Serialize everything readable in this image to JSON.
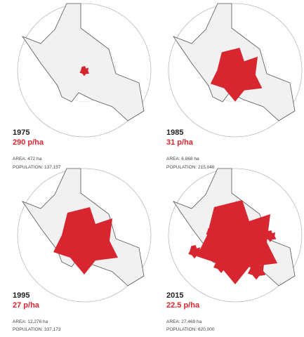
{
  "panels": [
    {
      "year": "1975",
      "density": "290 p/ha",
      "area": "AREA: 472 ha",
      "population": "POPULATION: 137,157"
    },
    {
      "year": "1985",
      "density": "31 p/ha",
      "area": "AREA: 6,868 ha",
      "population": "POPULATION: 215,048"
    },
    {
      "year": "1995",
      "density": "27 p/ha",
      "area": "AREA: 12,276 ha",
      "population": "POPULATION: 337,173"
    },
    {
      "year": "2015",
      "density": "22.5 p/ha",
      "area": "AREA: 27,469 ha",
      "population": "POPULATION: 620,000"
    }
  ]
}
